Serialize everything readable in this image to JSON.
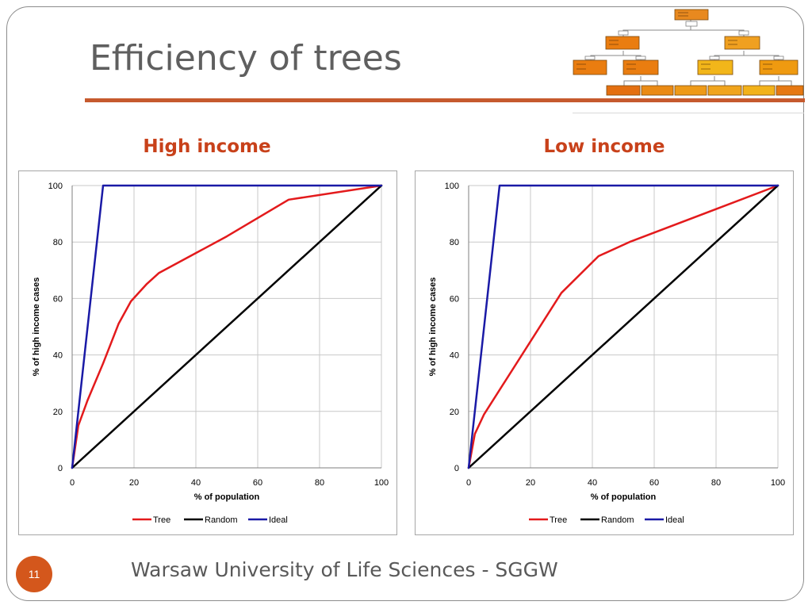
{
  "slide": {
    "title": "Efficiency of trees",
    "page_number": "11",
    "footer": "Warsaw University of Life Sciences - SGGW",
    "accent_color": "#c65a2e",
    "heading_color": "#c8411a",
    "thumbnail_icon": "decision-tree-diagram"
  },
  "chart_data": [
    {
      "type": "line",
      "title": "High income",
      "xlabel": "% of population",
      "ylabel": "% of high income cases",
      "xlim": [
        0,
        100
      ],
      "ylim": [
        0,
        100
      ],
      "xticks": [
        0,
        20,
        40,
        60,
        80,
        100
      ],
      "yticks": [
        0,
        20,
        40,
        60,
        80,
        100
      ],
      "grid": true,
      "legend": "bottom",
      "series": [
        {
          "name": "Tree",
          "color": "#e31a1c",
          "x": [
            0,
            2,
            5,
            10,
            15,
            19,
            24,
            28,
            50,
            70,
            100
          ],
          "y": [
            0,
            15,
            24,
            37,
            51,
            59,
            65,
            69,
            82,
            95,
            100
          ]
        },
        {
          "name": "Random",
          "color": "#000000",
          "x": [
            0,
            100
          ],
          "y": [
            0,
            100
          ]
        },
        {
          "name": "Ideal",
          "color": "#1a1aa6",
          "x": [
            0,
            10,
            100
          ],
          "y": [
            0,
            100,
            100
          ]
        }
      ]
    },
    {
      "type": "line",
      "title": "Low income",
      "xlabel": "% of population",
      "ylabel": "% of high income cases",
      "xlim": [
        0,
        100
      ],
      "ylim": [
        0,
        100
      ],
      "xticks": [
        0,
        20,
        40,
        60,
        80,
        100
      ],
      "yticks": [
        0,
        20,
        40,
        60,
        80,
        100
      ],
      "grid": true,
      "legend": "bottom",
      "series": [
        {
          "name": "Tree",
          "color": "#e31a1c",
          "x": [
            0,
            2,
            5,
            30,
            42,
            52,
            100
          ],
          "y": [
            0,
            12,
            19,
            62,
            75,
            80,
            100
          ]
        },
        {
          "name": "Random",
          "color": "#000000",
          "x": [
            0,
            100
          ],
          "y": [
            0,
            100
          ]
        },
        {
          "name": "Ideal",
          "color": "#1a1aa6",
          "x": [
            0,
            10,
            100
          ],
          "y": [
            0,
            100,
            100
          ]
        }
      ]
    }
  ]
}
